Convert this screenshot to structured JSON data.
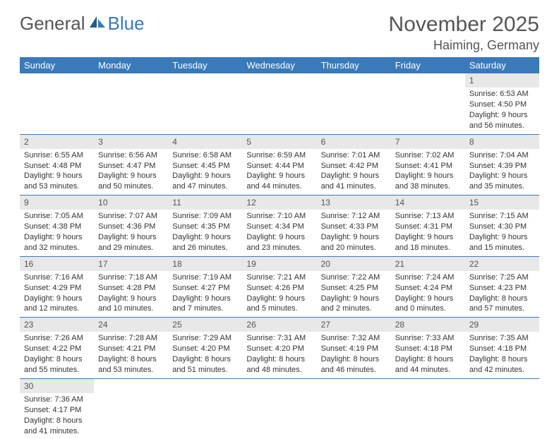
{
  "logo": {
    "text1": "General",
    "text2": "Blue"
  },
  "title": "November 2025",
  "location": "Haiming, Germany",
  "colors": {
    "header_bg": "#3a7ab8",
    "header_text": "#ffffff",
    "daynum_bg": "#e8e8e8",
    "row_divider": "#3a7ab8",
    "body_text": "#333333"
  },
  "weekdays": [
    "Sunday",
    "Monday",
    "Tuesday",
    "Wednesday",
    "Thursday",
    "Friday",
    "Saturday"
  ],
  "first_weekday_index": 6,
  "days": [
    {
      "n": 1,
      "sunrise": "6:53 AM",
      "sunset": "4:50 PM",
      "daylight": "9 hours and 56 minutes."
    },
    {
      "n": 2,
      "sunrise": "6:55 AM",
      "sunset": "4:48 PM",
      "daylight": "9 hours and 53 minutes."
    },
    {
      "n": 3,
      "sunrise": "6:56 AM",
      "sunset": "4:47 PM",
      "daylight": "9 hours and 50 minutes."
    },
    {
      "n": 4,
      "sunrise": "6:58 AM",
      "sunset": "4:45 PM",
      "daylight": "9 hours and 47 minutes."
    },
    {
      "n": 5,
      "sunrise": "6:59 AM",
      "sunset": "4:44 PM",
      "daylight": "9 hours and 44 minutes."
    },
    {
      "n": 6,
      "sunrise": "7:01 AM",
      "sunset": "4:42 PM",
      "daylight": "9 hours and 41 minutes."
    },
    {
      "n": 7,
      "sunrise": "7:02 AM",
      "sunset": "4:41 PM",
      "daylight": "9 hours and 38 minutes."
    },
    {
      "n": 8,
      "sunrise": "7:04 AM",
      "sunset": "4:39 PM",
      "daylight": "9 hours and 35 minutes."
    },
    {
      "n": 9,
      "sunrise": "7:05 AM",
      "sunset": "4:38 PM",
      "daylight": "9 hours and 32 minutes."
    },
    {
      "n": 10,
      "sunrise": "7:07 AM",
      "sunset": "4:36 PM",
      "daylight": "9 hours and 29 minutes."
    },
    {
      "n": 11,
      "sunrise": "7:09 AM",
      "sunset": "4:35 PM",
      "daylight": "9 hours and 26 minutes."
    },
    {
      "n": 12,
      "sunrise": "7:10 AM",
      "sunset": "4:34 PM",
      "daylight": "9 hours and 23 minutes."
    },
    {
      "n": 13,
      "sunrise": "7:12 AM",
      "sunset": "4:33 PM",
      "daylight": "9 hours and 20 minutes."
    },
    {
      "n": 14,
      "sunrise": "7:13 AM",
      "sunset": "4:31 PM",
      "daylight": "9 hours and 18 minutes."
    },
    {
      "n": 15,
      "sunrise": "7:15 AM",
      "sunset": "4:30 PM",
      "daylight": "9 hours and 15 minutes."
    },
    {
      "n": 16,
      "sunrise": "7:16 AM",
      "sunset": "4:29 PM",
      "daylight": "9 hours and 12 minutes."
    },
    {
      "n": 17,
      "sunrise": "7:18 AM",
      "sunset": "4:28 PM",
      "daylight": "9 hours and 10 minutes."
    },
    {
      "n": 18,
      "sunrise": "7:19 AM",
      "sunset": "4:27 PM",
      "daylight": "9 hours and 7 minutes."
    },
    {
      "n": 19,
      "sunrise": "7:21 AM",
      "sunset": "4:26 PM",
      "daylight": "9 hours and 5 minutes."
    },
    {
      "n": 20,
      "sunrise": "7:22 AM",
      "sunset": "4:25 PM",
      "daylight": "9 hours and 2 minutes."
    },
    {
      "n": 21,
      "sunrise": "7:24 AM",
      "sunset": "4:24 PM",
      "daylight": "9 hours and 0 minutes."
    },
    {
      "n": 22,
      "sunrise": "7:25 AM",
      "sunset": "4:23 PM",
      "daylight": "8 hours and 57 minutes."
    },
    {
      "n": 23,
      "sunrise": "7:26 AM",
      "sunset": "4:22 PM",
      "daylight": "8 hours and 55 minutes."
    },
    {
      "n": 24,
      "sunrise": "7:28 AM",
      "sunset": "4:21 PM",
      "daylight": "8 hours and 53 minutes."
    },
    {
      "n": 25,
      "sunrise": "7:29 AM",
      "sunset": "4:20 PM",
      "daylight": "8 hours and 51 minutes."
    },
    {
      "n": 26,
      "sunrise": "7:31 AM",
      "sunset": "4:20 PM",
      "daylight": "8 hours and 48 minutes."
    },
    {
      "n": 27,
      "sunrise": "7:32 AM",
      "sunset": "4:19 PM",
      "daylight": "8 hours and 46 minutes."
    },
    {
      "n": 28,
      "sunrise": "7:33 AM",
      "sunset": "4:18 PM",
      "daylight": "8 hours and 44 minutes."
    },
    {
      "n": 29,
      "sunrise": "7:35 AM",
      "sunset": "4:18 PM",
      "daylight": "8 hours and 42 minutes."
    },
    {
      "n": 30,
      "sunrise": "7:36 AM",
      "sunset": "4:17 PM",
      "daylight": "8 hours and 41 minutes."
    }
  ],
  "labels": {
    "sunrise": "Sunrise:",
    "sunset": "Sunset:",
    "daylight": "Daylight:"
  }
}
